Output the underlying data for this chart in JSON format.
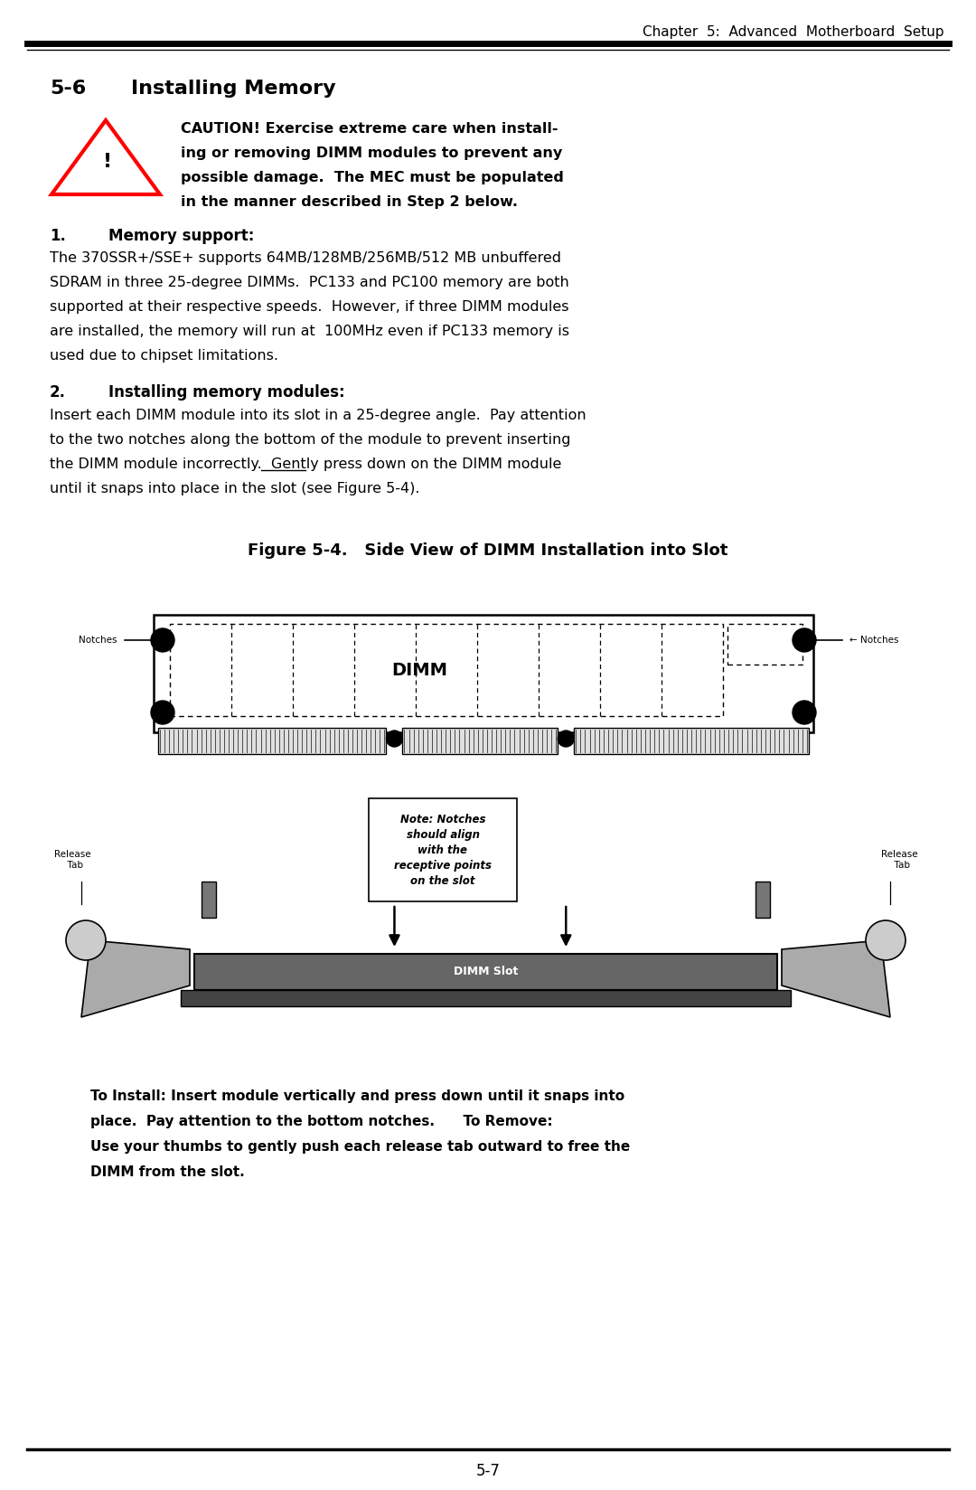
{
  "header_text": "Chapter  5:  Advanced  Motherboard  Setup",
  "section_title": "5-6   Installing Memory",
  "caution_lines": [
    "CAUTION! Exercise extreme care when install-",
    "ing or removing DIMM modules to prevent any",
    "possible damage.  The MEC must be populated",
    "in the manner described in Step 2 below."
  ],
  "section1_heading": "1.     Memory support:",
  "section1_lines": [
    "The 370SSR+/SSE+ supports 64MB/128MB/256MB/512 MB unbuffered",
    "SDRAM in three 25-degree DIMMs.  PC133 and PC100 memory are both",
    "supported at their respective speeds.  However, if three DIMM modules",
    "are installed, the memory will run at  100MHz even if PC133 memory is",
    "used due to chipset limitations."
  ],
  "section2_heading": "2.     Installing memory modules:",
  "section2_lines": [
    "Insert each DIMM module into its slot in a 25-degree angle.  Pay attention",
    "to the two notches along the bottom of the module to prevent inserting",
    "the DIMM module incorrectly.  Gently press down on the DIMM module",
    "until it snaps into place in the slot (see Figure 5-4)."
  ],
  "figure_caption": "Figure 5-4.   Side View of DIMM Installation into Slot",
  "note_text": "Note: Notches\nshould align\nwith the\nreceptive points\non the slot",
  "install_lines": [
    "To Install: Insert module vertically and press down until it snaps into",
    "place.  Pay attention to the bottom notches.      To Remove:",
    "Use your thumbs to gently push each release tab outward to free the",
    "DIMM from the slot."
  ],
  "footer_text": "5-7",
  "bg_color": "#ffffff",
  "text_color": "#000000",
  "gray_dark": "#555555",
  "gray_slot": "#666666",
  "gray_mid": "#888888",
  "gray_tab": "#999999",
  "gray_hinge": "#bbbbbb",
  "gray_wall": "#777777"
}
